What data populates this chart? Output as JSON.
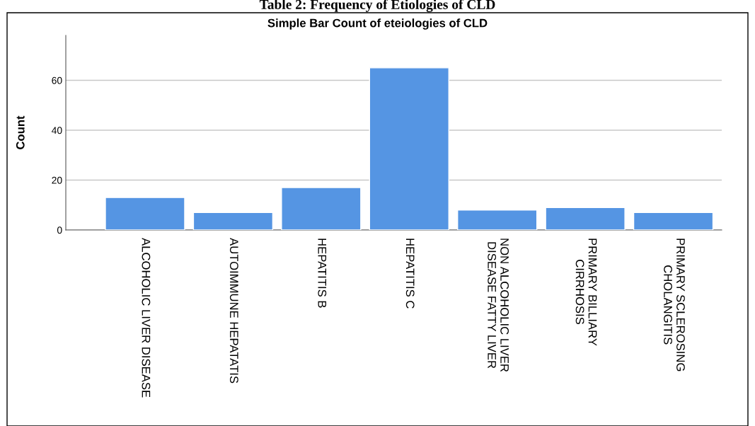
{
  "chart_data": {
    "type": "bar",
    "title": "Table 2: Frequency of Etiologies of CLD",
    "subtitle": "Simple Bar Count of eteiologies of CLD",
    "ylabel": "Count",
    "categories": [
      "ALCOHOLIC LIVER DISEASE",
      "AUTOIMMUNE HEPATATIS",
      "HEPATITIS B",
      "HEPATITIS C",
      "NON ALCOHOLIC LIVER\nDISEASE FATTY LIVER",
      "PRIMARY BILLIARY\nCIRRHOSIS",
      "PRIMARY SCLEROSING\nCHOLANGITIS"
    ],
    "values": [
      13,
      7,
      17,
      65,
      8,
      9,
      7
    ],
    "color": "#5595e3",
    "ylim": [
      0,
      78
    ],
    "yticks": [
      0,
      20,
      40,
      60
    ],
    "grid": "y"
  }
}
